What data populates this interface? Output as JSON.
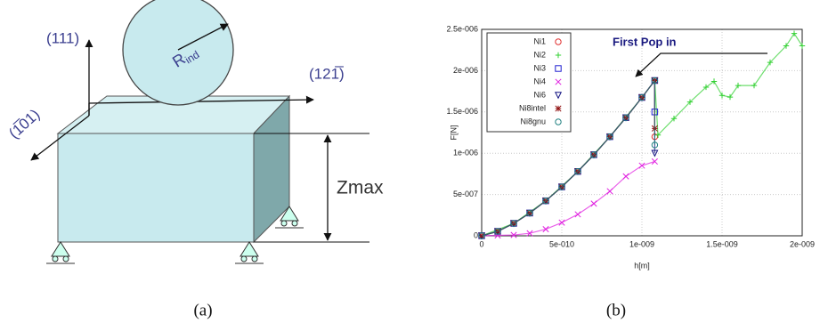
{
  "figure": {
    "axis_111": "(111)",
    "axis_121": "(121̅)",
    "axis_101": "(1̅01)",
    "radius_label": {
      "main": "R",
      "sub": "ind"
    },
    "depth_label": "Zmax",
    "caption_a": "(a)",
    "caption_b": "(b)"
  },
  "chart_data": {
    "type": "scatter",
    "x_label": "h[m]",
    "y_label": "F[N]",
    "annotation": "First Pop in",
    "xlim": [
      0,
      2e-09
    ],
    "xticks": [
      0,
      {
        "value": 5e-10,
        "label": "5e-010"
      },
      {
        "value": 1e-09,
        "label": "1e-009"
      },
      {
        "value": 1.5e-09,
        "label": "1.5e-009"
      },
      {
        "value": 2e-09,
        "label": "2e-009"
      }
    ],
    "ylim": [
      0,
      2.5e-06
    ],
    "yticks": [
      0,
      {
        "value": 5e-07,
        "label": "5e-007"
      },
      {
        "value": 1e-06,
        "label": "1e-006"
      },
      {
        "value": 1.5e-06,
        "label": "1.5e-006"
      },
      {
        "value": 2e-06,
        "label": "2e-006"
      },
      {
        "value": 2.5e-06,
        "label": "2.5e-006"
      }
    ],
    "grid": true,
    "legend": "upper left",
    "series": [
      {
        "name": "Ni1",
        "color": "#e03030",
        "marker": "circle",
        "x": [
          0,
          1e-10,
          2e-10,
          3e-10,
          4e-10,
          5e-10,
          6e-10,
          7e-10,
          8e-10,
          9e-10,
          1e-09,
          1.08e-09,
          1.08e-09
        ],
        "values": [
          0,
          5.3e-08,
          1.5e-07,
          2.75e-07,
          4.24e-07,
          5.92e-07,
          7.79e-07,
          9.81e-07,
          1.2e-06,
          1.43e-06,
          1.675e-06,
          1.88e-06,
          1.2e-06
        ]
      },
      {
        "name": "Ni2",
        "color": "#30d030",
        "marker": "plus",
        "x": [
          0,
          2e-10,
          4e-10,
          6e-10,
          8e-10,
          1e-09,
          1.08e-09,
          1.1e-09,
          1.2e-09,
          1.3e-09,
          1.4e-09,
          1.45e-09,
          1.5e-09,
          1.55e-09,
          1.6e-09,
          1.7e-09,
          1.8e-09,
          1.9e-09,
          1.95e-09,
          2e-09
        ],
        "values": [
          0,
          1.5e-07,
          4.24e-07,
          7.79e-07,
          1.2e-06,
          1.675e-06,
          1.88e-06,
          1.22e-06,
          1.42e-06,
          1.62e-06,
          1.8e-06,
          1.87e-06,
          1.7e-06,
          1.68e-06,
          1.82e-06,
          1.82e-06,
          2.1e-06,
          2.3e-06,
          2.45e-06,
          2.3e-06
        ]
      },
      {
        "name": "Ni3",
        "color": "#2020d0",
        "marker": "square",
        "x": [
          0,
          1e-10,
          2e-10,
          3e-10,
          4e-10,
          5e-10,
          6e-10,
          7e-10,
          8e-10,
          9e-10,
          1e-09,
          1.08e-09,
          1.08e-09
        ],
        "values": [
          0,
          5.3e-08,
          1.5e-07,
          2.75e-07,
          4.24e-07,
          5.92e-07,
          7.79e-07,
          9.81e-07,
          1.2e-06,
          1.43e-06,
          1.675e-06,
          1.88e-06,
          1.5e-06
        ]
      },
      {
        "name": "Ni4",
        "color": "#e020e0",
        "marker": "x",
        "x": [
          0,
          1e-10,
          2e-10,
          3e-10,
          4e-10,
          5e-10,
          6e-10,
          7e-10,
          8e-10,
          9e-10,
          1e-09,
          1.08e-09
        ],
        "values": [
          0,
          5e-09,
          1e-08,
          3e-08,
          8e-08,
          1.6e-07,
          2.6e-07,
          3.9e-07,
          5.4e-07,
          7.2e-07,
          8.5e-07,
          9e-07
        ]
      },
      {
        "name": "Ni6",
        "color": "#101080",
        "marker": "triangle",
        "x": [
          0,
          1e-10,
          2e-10,
          3e-10,
          4e-10,
          5e-10,
          6e-10,
          7e-10,
          8e-10,
          9e-10,
          1e-09,
          1.08e-09,
          1.08e-09
        ],
        "values": [
          0,
          5.3e-08,
          1.5e-07,
          2.75e-07,
          4.24e-07,
          5.92e-07,
          7.79e-07,
          9.81e-07,
          1.2e-06,
          1.43e-06,
          1.675e-06,
          1.88e-06,
          1e-06
        ]
      },
      {
        "name": "Ni8intel",
        "color": "#901010",
        "marker": "star",
        "x": [
          0,
          1e-10,
          2e-10,
          3e-10,
          4e-10,
          5e-10,
          6e-10,
          7e-10,
          8e-10,
          9e-10,
          1e-09,
          1.08e-09,
          1.08e-09
        ],
        "values": [
          0,
          5.3e-08,
          1.5e-07,
          2.75e-07,
          4.24e-07,
          5.92e-07,
          7.79e-07,
          9.81e-07,
          1.2e-06,
          1.43e-06,
          1.675e-06,
          1.88e-06,
          1.3e-06
        ]
      },
      {
        "name": "Ni8gnu",
        "color": "#208080",
        "marker": "circle",
        "x": [
          0,
          1e-10,
          2e-10,
          3e-10,
          4e-10,
          5e-10,
          6e-10,
          7e-10,
          8e-10,
          9e-10,
          1e-09,
          1.08e-09,
          1.08e-09
        ],
        "values": [
          0,
          5.3e-08,
          1.5e-07,
          2.75e-07,
          4.24e-07,
          5.92e-07,
          7.79e-07,
          9.81e-07,
          1.2e-06,
          1.43e-06,
          1.675e-06,
          1.88e-06,
          1.1e-06
        ]
      }
    ]
  }
}
